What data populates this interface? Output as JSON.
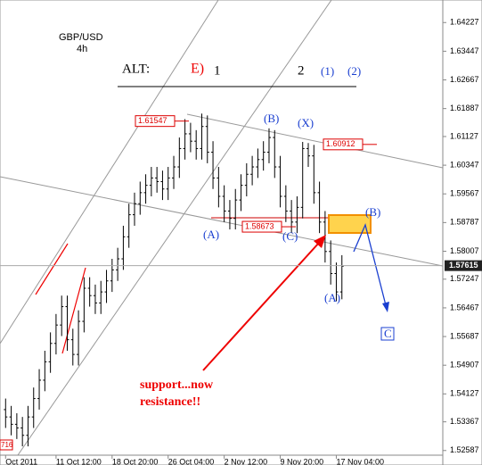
{
  "header": {
    "symbol": "GBP/USD",
    "timeframe": "4h"
  },
  "chart_data": {
    "type": "ohlc",
    "color": "#000000",
    "open": [
      1.537,
      1.535,
      1.533,
      1.532,
      1.53,
      1.535,
      1.54,
      1.545,
      1.55,
      1.555,
      1.56,
      1.565,
      1.556,
      1.552,
      1.561,
      1.57,
      1.568,
      1.566,
      1.569,
      1.572,
      1.575,
      1.578,
      1.584,
      1.59,
      1.593,
      1.596,
      1.598,
      1.6,
      1.599,
      1.597,
      1.6,
      1.603,
      1.608,
      1.612,
      1.61,
      1.608,
      1.614,
      1.607,
      1.6,
      1.595,
      1.591,
      1.589,
      1.594,
      1.598,
      1.601,
      1.603,
      1.605,
      1.607,
      1.611,
      1.603,
      1.595,
      1.591,
      1.588,
      1.592,
      1.608,
      1.606,
      1.596,
      1.588,
      1.58,
      1.574,
      1.569
    ],
    "high": [
      1.54,
      1.538,
      1.536,
      1.535,
      1.538,
      1.543,
      1.548,
      1.553,
      1.558,
      1.563,
      1.568,
      1.568,
      1.559,
      1.564,
      1.573,
      1.573,
      1.571,
      1.572,
      1.575,
      1.578,
      1.581,
      1.587,
      1.593,
      1.596,
      1.599,
      1.601,
      1.603,
      1.603,
      1.602,
      1.603,
      1.606,
      1.611,
      1.616,
      1.615,
      1.613,
      1.6175,
      1.617,
      1.61,
      1.603,
      1.598,
      1.594,
      1.597,
      1.601,
      1.604,
      1.606,
      1.608,
      1.61,
      1.6135,
      1.613,
      1.606,
      1.598,
      1.594,
      1.595,
      1.6098,
      1.6095,
      1.609,
      1.599,
      1.591,
      1.583,
      1.577,
      1.579
    ],
    "low": [
      1.532,
      1.53,
      1.529,
      1.527,
      1.527,
      1.532,
      1.537,
      1.542,
      1.547,
      1.552,
      1.557,
      1.553,
      1.549,
      1.549,
      1.558,
      1.565,
      1.563,
      1.563,
      1.566,
      1.569,
      1.572,
      1.575,
      1.581,
      1.587,
      1.59,
      1.593,
      1.595,
      1.596,
      1.594,
      1.594,
      1.597,
      1.6,
      1.605,
      1.607,
      1.605,
      1.605,
      1.604,
      1.597,
      1.592,
      1.588,
      1.586,
      1.586,
      1.591,
      1.595,
      1.598,
      1.6,
      1.602,
      1.604,
      1.6,
      1.592,
      1.588,
      1.585,
      1.585,
      1.589,
      1.603,
      1.593,
      1.585,
      1.577,
      1.571,
      1.5665,
      1.567
    ],
    "close": [
      1.535,
      1.533,
      1.532,
      1.53,
      1.535,
      1.54,
      1.545,
      1.55,
      1.555,
      1.56,
      1.565,
      1.556,
      1.552,
      1.561,
      1.57,
      1.568,
      1.566,
      1.569,
      1.572,
      1.575,
      1.578,
      1.584,
      1.59,
      1.593,
      1.596,
      1.598,
      1.6,
      1.599,
      1.597,
      1.6,
      1.603,
      1.608,
      1.612,
      1.61,
      1.608,
      1.614,
      1.607,
      1.6,
      1.595,
      1.591,
      1.589,
      1.594,
      1.598,
      1.601,
      1.603,
      1.605,
      1.607,
      1.611,
      1.603,
      1.595,
      1.591,
      1.588,
      1.592,
      1.608,
      1.606,
      1.596,
      1.588,
      1.58,
      1.574,
      1.569,
      1.576
    ],
    "xlim": [
      -1,
      78
    ],
    "xticks": [
      {
        "value": 0,
        "label": "Oct 2011"
      },
      {
        "value": 9,
        "label": "11 Oct 12:00"
      },
      {
        "value": 19,
        "label": "18 Oct 20:00"
      },
      {
        "value": 29,
        "label": "26 Oct 04:00"
      },
      {
        "value": 39,
        "label": "2 Nov 12:00"
      },
      {
        "value": 49,
        "label": "9 Nov 20:00"
      },
      {
        "value": 59,
        "label": "17 Nov 04:00"
      }
    ],
    "ylim": [
      1.5246,
      1.6484
    ],
    "yticks": [
      1.64227,
      1.63447,
      1.62667,
      1.61887,
      1.61127,
      1.60347,
      1.59567,
      1.58787,
      1.58007,
      1.57247,
      1.56467,
      1.55687,
      1.54907,
      1.54127,
      1.53367,
      1.52587
    ],
    "current_price": 1.57615,
    "price_labels": [
      1.61547,
      1.60912,
      1.58673
    ],
    "corner_label": "716",
    "annotations": [
      "ALT:",
      "E)",
      "1",
      "2",
      "(1)",
      "(2)",
      "(B)",
      "(X)",
      "(A)",
      "(C)",
      "(B)",
      "(A)",
      "C",
      "support...now",
      "resistance!!"
    ]
  }
}
